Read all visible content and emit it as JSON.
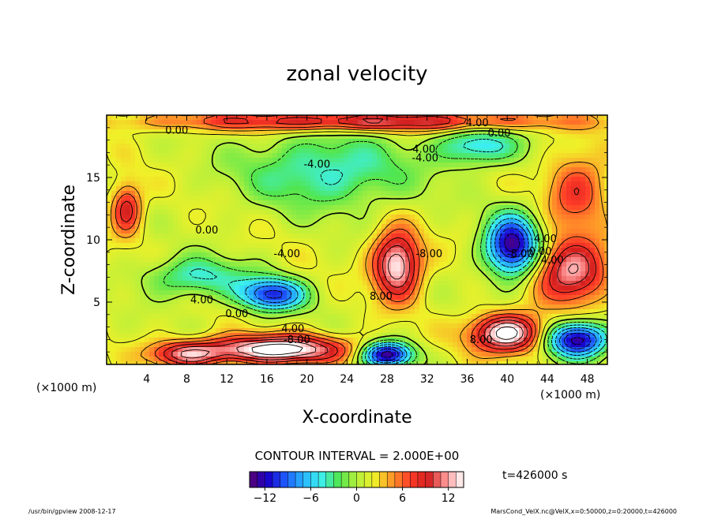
{
  "chart_data": {
    "type": "heatmap",
    "title": "zonal velocity",
    "xlabel": "X-coordinate",
    "ylabel": "Z-coordinate",
    "x_unit": "(×1000 m)",
    "y_unit": "(×1000 m)",
    "xlim": [
      0,
      50
    ],
    "ylim": [
      0,
      20
    ],
    "x_ticks": [
      4,
      8,
      12,
      16,
      20,
      24,
      28,
      32,
      36,
      40,
      44,
      48
    ],
    "y_ticks": [
      5,
      10,
      15
    ],
    "contour_interval_text": "CONTOUR INTERVAL = 2.000E+00",
    "time_text": "t=426000 s",
    "colorbar": {
      "range": [
        -14,
        14
      ],
      "ticks": [
        -12,
        -6,
        0,
        6,
        12
      ],
      "colormap": [
        "#5a0070",
        "#1800c8",
        "#1e5aff",
        "#28b4ff",
        "#3cf0f0",
        "#50e650",
        "#b4f03c",
        "#f0f028",
        "#ff9628",
        "#ff3c28",
        "#d21e1e",
        "#ff9696",
        "#ffffff"
      ]
    },
    "contour_labels": [
      {
        "text": "0.00",
        "x": 7.0,
        "z": 18.5
      },
      {
        "text": "-4.00",
        "x": 21.0,
        "z": 15.8
      },
      {
        "text": "-4.00",
        "x": 31.5,
        "z": 17.0
      },
      {
        "text": "-4.00",
        "x": 31.8,
        "z": 16.3
      },
      {
        "text": "4.00",
        "x": 37.0,
        "z": 19.1
      },
      {
        "text": "0.00",
        "x": 39.2,
        "z": 18.3
      },
      {
        "text": "0.00",
        "x": 10.0,
        "z": 10.5
      },
      {
        "text": "-4.00",
        "x": 18.0,
        "z": 8.6
      },
      {
        "text": "-8.00",
        "x": 32.2,
        "z": 8.6
      },
      {
        "text": "-8.00",
        "x": 41.3,
        "z": 8.6
      },
      {
        "text": "4.00",
        "x": 43.8,
        "z": 9.8
      },
      {
        "text": "0.00",
        "x": 43.3,
        "z": 8.8
      },
      {
        "text": "4.00",
        "x": 44.5,
        "z": 8.1
      },
      {
        "text": "4.00",
        "x": 9.5,
        "z": 4.9
      },
      {
        "text": "0.00",
        "x": 13.0,
        "z": 3.8
      },
      {
        "text": "8.00",
        "x": 27.4,
        "z": 5.2
      },
      {
        "text": "4.00",
        "x": 18.6,
        "z": 2.6
      },
      {
        "text": "-8.00",
        "x": 19.0,
        "z": 1.7
      },
      {
        "text": "8.00",
        "x": 37.4,
        "z": 1.7
      }
    ],
    "features": [
      {
        "kind": "background",
        "value": 1.5
      },
      {
        "kind": "max",
        "x": 29,
        "z": 8,
        "sx": 2.3,
        "sz": 2.6,
        "amp": 13
      },
      {
        "kind": "min",
        "x": 40.5,
        "z": 9.5,
        "sx": 2.6,
        "sz": 2.4,
        "amp": -15
      },
      {
        "kind": "min",
        "x": 16.5,
        "z": 5.6,
        "sx": 3.2,
        "sz": 1.3,
        "amp": -12
      },
      {
        "kind": "min",
        "x": 22,
        "z": 15.5,
        "sx": 8.5,
        "sz": 3.0,
        "amp": -6
      },
      {
        "kind": "min",
        "x": 9,
        "z": 7,
        "sx": 5,
        "sz": 1.6,
        "amp": -6
      },
      {
        "kind": "min",
        "x": 37,
        "z": 17.5,
        "sx": 4,
        "sz": 1.5,
        "amp": -7
      },
      {
        "kind": "max",
        "x": 46.5,
        "z": 7.5,
        "sx": 3.5,
        "sz": 2.5,
        "amp": 11
      },
      {
        "kind": "max",
        "x": 40,
        "z": 2.5,
        "sx": 3.5,
        "sz": 1.5,
        "amp": 14
      },
      {
        "kind": "max",
        "x": 17,
        "z": 1.2,
        "sx": 7,
        "sz": 1.1,
        "amp": 14
      },
      {
        "kind": "max",
        "x": 8,
        "z": 0.8,
        "sx": 3.5,
        "sz": 1.0,
        "amp": 9
      },
      {
        "kind": "max",
        "x": 25,
        "z": 19.5,
        "sx": 20,
        "sz": 0.8,
        "amp": 9
      },
      {
        "kind": "max",
        "x": 47,
        "z": 14,
        "sx": 3,
        "sz": 3,
        "amp": 6
      },
      {
        "kind": "max",
        "x": 2,
        "z": 12.5,
        "sx": 1.5,
        "sz": 2,
        "amp": 8
      },
      {
        "kind": "min",
        "x": 28,
        "z": 0.8,
        "sx": 2.5,
        "sz": 1.0,
        "amp": -15
      },
      {
        "kind": "min",
        "x": 47,
        "z": 2.0,
        "sx": 3,
        "sz": 1.4,
        "amp": -15
      }
    ]
  },
  "footer": {
    "left": "/usr/bin/gpview   2008-12-17",
    "right": "MarsCond_VelX.nc@VelX,x=0:50000,z=0:20000,t=426000"
  }
}
